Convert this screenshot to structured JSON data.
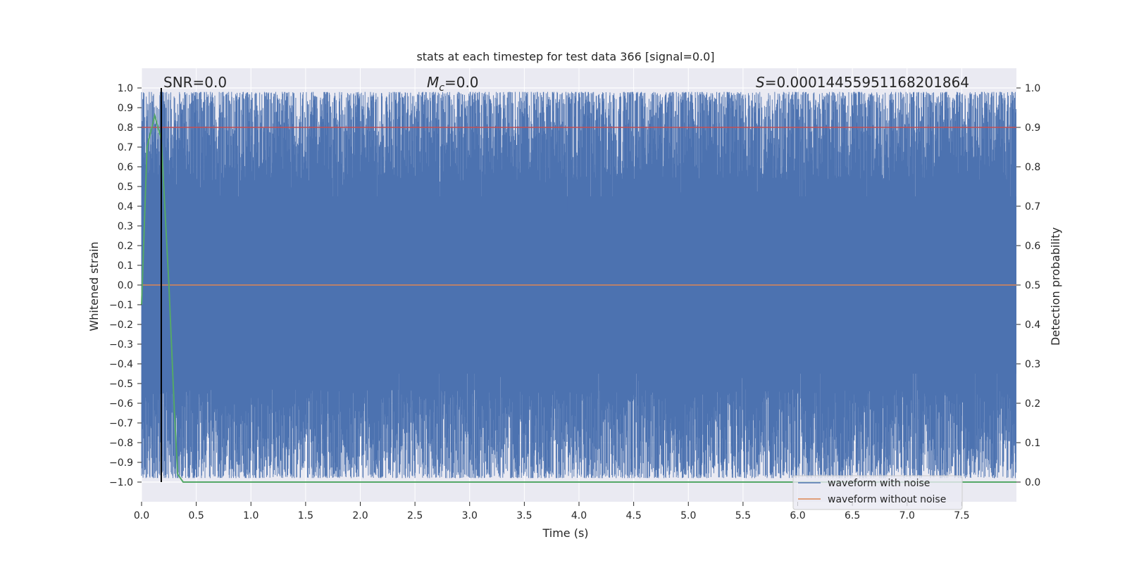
{
  "chart_data": {
    "type": "line",
    "title": "stats at each timestep for test data 366 [signal=0.0]",
    "xlabel": "Time (s)",
    "ylabel": "Whitened strain",
    "ylabel_right": "Detection probability",
    "xlim": [
      0.0,
      8.0
    ],
    "ylim": [
      -1.1,
      1.1
    ],
    "ylim_right": [
      -0.05,
      1.05
    ],
    "xticks": [
      "0.0",
      "0.5",
      "1.0",
      "1.5",
      "2.0",
      "2.5",
      "3.0",
      "3.5",
      "4.0",
      "4.5",
      "5.0",
      "5.5",
      "6.0",
      "6.5",
      "7.0",
      "7.5"
    ],
    "yticks": [
      "1.0",
      "0.9",
      "0.8",
      "0.7",
      "0.6",
      "0.5",
      "0.4",
      "0.3",
      "0.2",
      "0.1",
      "0.0",
      "−0.1",
      "−0.2",
      "−0.3",
      "−0.4",
      "−0.5",
      "−0.6",
      "−0.7",
      "−0.8",
      "−0.9",
      "−1.0"
    ],
    "yticks_right": [
      "1.0",
      "0.9",
      "0.8",
      "0.7",
      "0.6",
      "0.5",
      "0.4",
      "0.3",
      "0.2",
      "0.1",
      "0.0"
    ],
    "grid": true,
    "background": "#eaeaf2",
    "annotations": {
      "snr": "SNR=0.0",
      "mc_symbol": "M",
      "mc_sub": "c",
      "mc_value": "=0.0",
      "s_symbol": "S",
      "s_value": "=0.00014455951168201864"
    },
    "legend": {
      "placement": "lower-right",
      "entries": [
        "waveform with noise",
        "waveform without noise"
      ]
    },
    "marker_time": 0.18,
    "threshold": 0.9,
    "series": [
      {
        "name": "waveform with noise",
        "color": "#4c72b0",
        "axis": "left",
        "description_values": "dense noise spanning approximately -1.0 to 1.0 over 0–8 s"
      },
      {
        "name": "waveform without noise",
        "color": "#dd8452",
        "axis": "left",
        "x": [
          0.0,
          8.0
        ],
        "y": [
          0.0,
          0.0
        ]
      },
      {
        "axis": "right",
        "color": "#55a868",
        "x": [
          0.0,
          0.05,
          0.12,
          0.18,
          0.25,
          0.3,
          0.33,
          0.38,
          0.5,
          8.0
        ],
        "y": [
          0.45,
          0.85,
          0.93,
          0.87,
          0.5,
          0.18,
          0.02,
          0.0,
          0.0,
          0.0
        ]
      },
      {
        "axis": "right",
        "color": "#c44e52",
        "x": [
          0.0,
          8.0
        ],
        "y": [
          0.9,
          0.9
        ]
      }
    ]
  }
}
